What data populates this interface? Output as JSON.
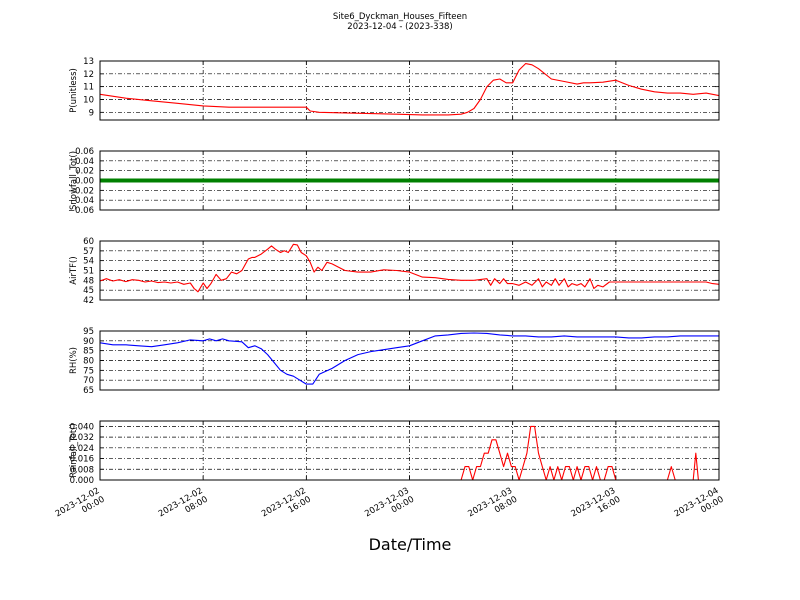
{
  "chart_data": {
    "type": "line",
    "title": "Site6_Dyckman_Houses_Fifteen",
    "subtitle": "2023-12-04 - (2023-338)",
    "xlabel": "Date/Time",
    "x_tick_labels": [
      [
        "2023-12-02",
        "00:00"
      ],
      [
        "2023-12-02",
        "08:00"
      ],
      [
        "2023-12-02",
        "16:00"
      ],
      [
        "2023-12-03",
        "00:00"
      ],
      [
        "2023-12-03",
        "08:00"
      ],
      [
        "2023-12-03",
        "16:00"
      ],
      [
        "2023-12-04",
        "00:00"
      ]
    ],
    "x_range_hours": [
      0,
      48
    ],
    "grid": true,
    "panels": [
      {
        "ylabel": "P(unitless)",
        "color": "#ff0000",
        "ylim": [
          8.4,
          13
        ],
        "yticks": [
          9,
          10,
          11,
          12,
          13
        ],
        "ytick_labels": [
          "9",
          "10",
          "11",
          "12",
          "13"
        ],
        "x": [
          0,
          2,
          4,
          6,
          8,
          10,
          12,
          14,
          16,
          16.3,
          17,
          19,
          21,
          23,
          25,
          27,
          28,
          28.5,
          29,
          29.5,
          30,
          30.5,
          31,
          31.5,
          32,
          32.5,
          33,
          33.5,
          34,
          34.5,
          35,
          36,
          37,
          37.5,
          38,
          39,
          40,
          41,
          42,
          43,
          44,
          45,
          46,
          47,
          48
        ],
        "y": [
          10.4,
          10.1,
          9.9,
          9.7,
          9.5,
          9.4,
          9.4,
          9.4,
          9.4,
          9.1,
          9.0,
          8.95,
          8.9,
          8.85,
          8.8,
          8.8,
          8.85,
          9.0,
          9.3,
          10.0,
          11.0,
          11.5,
          11.6,
          11.3,
          11.3,
          12.3,
          12.8,
          12.7,
          12.4,
          12.0,
          11.6,
          11.4,
          11.2,
          11.3,
          11.3,
          11.35,
          11.5,
          11.1,
          10.8,
          10.6,
          10.5,
          10.5,
          10.4,
          10.5,
          10.3
        ]
      },
      {
        "ylabel": "Snowfall_Tot()",
        "color": "#008000",
        "ylim": [
          -0.06,
          0.06
        ],
        "yticks": [
          -0.06,
          -0.04,
          -0.02,
          0.0,
          0.02,
          0.04,
          0.06
        ],
        "ytick_labels": [
          "−0.06",
          "−0.04",
          "−0.02",
          "0.00",
          "0.02",
          "0.04",
          "0.06"
        ],
        "x": [
          0,
          48
        ],
        "y": [
          0,
          0
        ]
      },
      {
        "ylabel": "AirTF()",
        "color": "#ff0000",
        "ylim": [
          42,
          60
        ],
        "yticks": [
          42,
          45,
          48,
          51,
          54,
          57,
          60
        ],
        "ytick_labels": [
          "42",
          "45",
          "48",
          "51",
          "54",
          "57",
          "60"
        ],
        "x": [
          0,
          0.5,
          1,
          1.5,
          2,
          2.5,
          3,
          3.5,
          4,
          4.5,
          5,
          5.5,
          6,
          6.5,
          7,
          7.3,
          7.6,
          8,
          8.3,
          8.6,
          9,
          9.4,
          9.8,
          10.2,
          10.6,
          11,
          11.5,
          11.8,
          12,
          12.5,
          13,
          13.3,
          13.6,
          14,
          14.3,
          14.6,
          15,
          15.3,
          15.6,
          16,
          16.3,
          16.6,
          16.9,
          17.2,
          17.6,
          18,
          18.5,
          19,
          20,
          21,
          22,
          23,
          24,
          25,
          26,
          27,
          28,
          29,
          30,
          30.3,
          30.6,
          31,
          31.3,
          31.6,
          32,
          32.5,
          33,
          33.5,
          34,
          34.3,
          34.6,
          35,
          35.3,
          35.6,
          36,
          36.3,
          36.6,
          37,
          37.3,
          37.6,
          38,
          38.3,
          38.6,
          39,
          39.5,
          40,
          40.3,
          40.6,
          41,
          42,
          43,
          44,
          45,
          46,
          47,
          47.5,
          48
        ],
        "y": [
          47.8,
          48.5,
          47.8,
          48.2,
          47.6,
          48.2,
          48.0,
          47.5,
          47.8,
          47.3,
          47.5,
          47.2,
          47.5,
          46.8,
          47.2,
          45.5,
          44.5,
          47.2,
          45.5,
          47.0,
          49.8,
          48.0,
          48.5,
          50.5,
          50.0,
          51.0,
          54.5,
          55.0,
          55.0,
          56.0,
          57.5,
          58.5,
          57.5,
          56.5,
          57.0,
          56.5,
          59.0,
          58.8,
          56.5,
          55.5,
          53.5,
          50.5,
          52.0,
          51.0,
          53.5,
          53.0,
          52.0,
          51.0,
          50.5,
          50.5,
          51.2,
          51.0,
          50.5,
          49.0,
          48.8,
          48.3,
          48.0,
          48.0,
          48.5,
          46.5,
          48.5,
          47.0,
          48.5,
          47.0,
          47.0,
          46.5,
          47.5,
          46.5,
          48.5,
          46.0,
          47.5,
          46.5,
          48.5,
          46.5,
          48.5,
          46.0,
          47.0,
          46.5,
          47.0,
          46.0,
          48.5,
          45.5,
          46.5,
          46.0,
          47.5,
          47.5,
          47.5,
          47.5,
          47.5,
          47.5,
          47.5,
          47.5,
          47.5,
          47.5,
          47.5,
          47.0,
          46.8
        ]
      },
      {
        "ylabel": "RH(%)",
        "color": "#0000ff",
        "ylim": [
          65,
          95
        ],
        "yticks": [
          65,
          70,
          75,
          80,
          85,
          90,
          95
        ],
        "ytick_labels": [
          "65",
          "70",
          "75",
          "80",
          "85",
          "90",
          "95"
        ],
        "x": [
          0,
          1,
          2,
          3,
          4,
          5,
          6,
          7,
          8,
          8.5,
          9,
          9.5,
          10,
          11,
          11.5,
          12,
          12.5,
          13,
          13.5,
          14,
          14.5,
          15,
          15.5,
          16,
          16.5,
          17,
          18,
          19,
          20,
          21,
          22,
          23,
          24,
          25,
          26,
          27,
          28,
          29,
          30,
          31,
          32,
          33,
          34,
          35,
          36,
          37,
          38,
          39,
          40,
          41,
          42,
          43,
          44,
          45,
          46,
          47,
          48
        ],
        "y": [
          89,
          88,
          88,
          87.5,
          87,
          88,
          89,
          90.5,
          90,
          91,
          90,
          91,
          90,
          89.5,
          86.5,
          87.5,
          86,
          83,
          79,
          75,
          73,
          72,
          70,
          68,
          68,
          73,
          76,
          80,
          83,
          84.5,
          85.5,
          86.5,
          87.5,
          90,
          92.5,
          93,
          93.8,
          94,
          93.8,
          93,
          92.5,
          92.5,
          92,
          92,
          92.5,
          92,
          92,
          92,
          92,
          91.5,
          91.5,
          92,
          92,
          92.5,
          92.5,
          92.5,
          92.5
        ]
      },
      {
        "ylabel": "Rainfall_Tot()",
        "color": "#ff0000",
        "ylim": [
          0,
          0.044
        ],
        "yticks": [
          0.0,
          0.008,
          0.016,
          0.024,
          0.032,
          0.04
        ],
        "ytick_labels": [
          "0.000",
          "0.008",
          "0.016",
          "0.024",
          "0.032",
          "0.040"
        ],
        "x": [
          0,
          28,
          28.3,
          28.6,
          28.9,
          29.2,
          29.5,
          29.8,
          30.1,
          30.4,
          30.7,
          31,
          31.3,
          31.6,
          31.9,
          32.2,
          32.5,
          32.8,
          33.1,
          33.4,
          33.7,
          34,
          34.3,
          34.6,
          34.9,
          35.2,
          35.5,
          35.8,
          36.1,
          36.4,
          36.7,
          37,
          37.3,
          37.6,
          37.9,
          38.2,
          38.5,
          38.8,
          39.1,
          39.4,
          39.7,
          40,
          44,
          44.3,
          44.6,
          45,
          46,
          46.2,
          46.4,
          46.6,
          47
        ],
        "y": [
          0,
          0,
          0.01,
          0.01,
          0,
          0.01,
          0.01,
          0.02,
          0.02,
          0.03,
          0.03,
          0.02,
          0.01,
          0.02,
          0.01,
          0.01,
          0,
          0.01,
          0.02,
          0.04,
          0.04,
          0.02,
          0.01,
          0,
          0.01,
          0,
          0.01,
          0,
          0.01,
          0.01,
          0,
          0.01,
          0,
          0.01,
          0.01,
          0,
          0.01,
          0,
          0,
          0.01,
          0.01,
          0,
          0,
          0.01,
          0,
          0,
          0,
          0.02,
          0,
          0,
          0
        ]
      }
    ]
  }
}
